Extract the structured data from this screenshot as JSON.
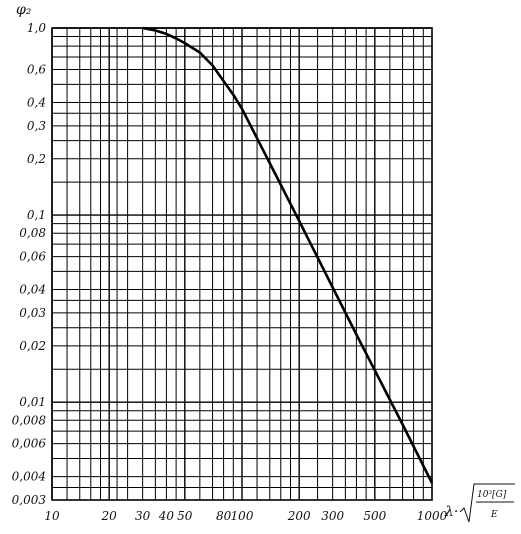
{
  "chart_data": {
    "type": "line",
    "xscale": "log",
    "yscale": "log",
    "xlim": [
      10,
      1000
    ],
    "ylim": [
      0.003,
      1.0
    ],
    "grid": true,
    "ylabel": "φ₂",
    "xlabel_prefix": "λ·",
    "xlabel_num": "10³[G]",
    "xlabel_den": "E",
    "x_tick_labels": [
      {
        "v": 10,
        "t": "10"
      },
      {
        "v": 20,
        "t": "20"
      },
      {
        "v": 30,
        "t": "30"
      },
      {
        "v": 40,
        "t": "40"
      },
      {
        "v": 50,
        "t": "50"
      },
      {
        "v": 80,
        "t": "80"
      },
      {
        "v": 100,
        "t": "100"
      },
      {
        "v": 200,
        "t": "200"
      },
      {
        "v": 300,
        "t": "300"
      },
      {
        "v": 500,
        "t": "500"
      },
      {
        "v": 1000,
        "t": "1000"
      }
    ],
    "y_tick_labels": [
      {
        "v": 1.0,
        "t": "1,0"
      },
      {
        "v": 0.6,
        "t": "0,6"
      },
      {
        "v": 0.4,
        "t": "0,4"
      },
      {
        "v": 0.3,
        "t": "0,3"
      },
      {
        "v": 0.2,
        "t": "0,2"
      },
      {
        "v": 0.1,
        "t": "0,1"
      },
      {
        "v": 0.08,
        "t": "0,08"
      },
      {
        "v": 0.06,
        "t": "0,06"
      },
      {
        "v": 0.04,
        "t": "0,04"
      },
      {
        "v": 0.03,
        "t": "0,03"
      },
      {
        "v": 0.02,
        "t": "0,02"
      },
      {
        "v": 0.01,
        "t": "0,01"
      },
      {
        "v": 0.008,
        "t": "0,008"
      },
      {
        "v": 0.006,
        "t": "0,006"
      },
      {
        "v": 0.004,
        "t": "0,004"
      },
      {
        "v": 0.003,
        "t": "0,003"
      }
    ],
    "x_gridlines": [
      10,
      12,
      14,
      16,
      18,
      20,
      22,
      25,
      30,
      35,
      40,
      45,
      50,
      60,
      70,
      80,
      90,
      100,
      120,
      140,
      160,
      180,
      200,
      250,
      300,
      350,
      400,
      450,
      500,
      600,
      700,
      800,
      900,
      1000
    ],
    "y_gridlines": [
      1.0,
      0.9,
      0.8,
      0.7,
      0.6,
      0.5,
      0.4,
      0.35,
      0.3,
      0.25,
      0.2,
      0.15,
      0.1,
      0.09,
      0.08,
      0.07,
      0.06,
      0.05,
      0.04,
      0.035,
      0.03,
      0.025,
      0.02,
      0.015,
      0.01,
      0.009,
      0.008,
      0.007,
      0.006,
      0.005,
      0.004,
      0.0035,
      0.003
    ],
    "series": [
      {
        "color": "#000000",
        "points": [
          [
            30,
            1.0
          ],
          [
            35,
            0.97
          ],
          [
            40,
            0.93
          ],
          [
            45,
            0.88
          ],
          [
            50,
            0.83
          ],
          [
            60,
            0.74
          ],
          [
            70,
            0.63
          ],
          [
            80,
            0.52
          ],
          [
            90,
            0.44
          ],
          [
            100,
            0.37
          ],
          [
            150,
            0.165
          ],
          [
            200,
            0.093
          ],
          [
            300,
            0.041
          ],
          [
            400,
            0.023
          ],
          [
            500,
            0.0148
          ],
          [
            700,
            0.0076
          ],
          [
            1000,
            0.0037
          ]
        ]
      }
    ]
  }
}
